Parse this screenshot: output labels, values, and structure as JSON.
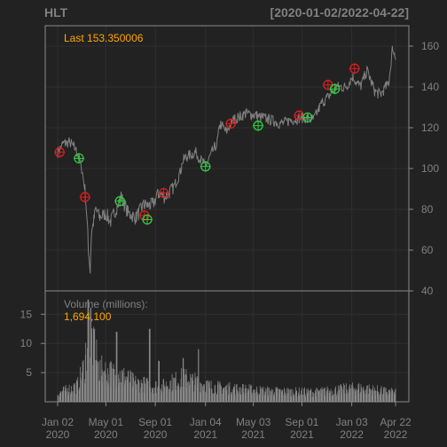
{
  "colors": {
    "background": "#222222",
    "panel_border": "#8a8a8a",
    "grid": "#2f2f2f",
    "price_line": "#808080",
    "volume_bars": "#888888",
    "text": "#808080",
    "last_label": "#ffa500",
    "buy_signal": "#2ecc40",
    "sell_signal": "#d62020"
  },
  "chart_data": {
    "type": "line",
    "title": "HLT",
    "date_range": "[2020-01-02/2022-04-22]",
    "last_label": "Last 153.350006",
    "price_panel": {
      "ylim": [
        40,
        170
      ],
      "yticks": [
        "40",
        "60",
        "80",
        "100",
        "120",
        "140",
        "160"
      ],
      "grid": true,
      "series": [
        {
          "x": [
            "2020-01-02",
            "2020-01-15",
            "2020-02-01",
            "2020-02-14",
            "2020-02-21",
            "2020-03-02",
            "2020-03-10",
            "2020-03-16",
            "2020-03-18",
            "2020-03-23",
            "2020-03-26",
            "2020-04-06",
            "2020-04-15",
            "2020-05-01",
            "2020-05-13",
            "2020-06-08",
            "2020-06-26",
            "2020-07-15",
            "2020-08-03",
            "2020-08-25",
            "2020-09-10",
            "2020-09-24",
            "2020-10-15",
            "2020-11-02",
            "2020-11-09",
            "2020-11-20",
            "2020-12-10",
            "2021-01-04",
            "2021-01-20",
            "2021-02-01",
            "2021-02-10",
            "2021-02-25",
            "2021-03-15",
            "2021-04-15",
            "2021-05-10",
            "2021-06-10",
            "2021-07-10",
            "2021-08-10",
            "2021-09-01",
            "2021-09-30",
            "2021-10-20",
            "2021-11-05",
            "2021-11-26",
            "2021-12-20",
            "2022-01-05",
            "2022-01-25",
            "2022-02-10",
            "2022-03-01",
            "2022-03-15",
            "2022-04-05",
            "2022-04-15",
            "2022-04-22"
          ],
          "y": [
            108,
            112,
            113,
            110,
            107,
            100,
            90,
            72,
            62,
            50,
            68,
            80,
            76,
            78,
            74,
            86,
            78,
            76,
            82,
            82,
            88,
            86,
            90,
            98,
            104,
            106,
            108,
            101,
            108,
            112,
            122,
            118,
            124,
            127,
            126,
            124,
            122,
            124,
            125,
            124,
            132,
            135,
            140,
            140,
            145,
            140,
            148,
            138,
            136,
            142,
            160,
            153.35
          ]
        }
      ]
    },
    "volume_panel": {
      "label": "Volume (millions):",
      "last_value": "1,694,100",
      "ylim": [
        0,
        19
      ],
      "yticks": [
        "5",
        "10",
        "15"
      ],
      "keypoints": [
        {
          "x": "2020-01-02",
          "y": 1.6
        },
        {
          "x": "2020-02-20",
          "y": 3.0
        },
        {
          "x": "2020-03-10",
          "y": 7.0
        },
        {
          "x": "2020-03-18",
          "y": 15.0
        },
        {
          "x": "2020-03-25",
          "y": 12.0
        },
        {
          "x": "2020-04-15",
          "y": 6.0
        },
        {
          "x": "2020-06-08",
          "y": 5.0
        },
        {
          "x": "2020-07-15",
          "y": 3.5
        },
        {
          "x": "2020-09-15",
          "y": 2.8
        },
        {
          "x": "2020-11-09",
          "y": 4.5
        },
        {
          "x": "2021-01-20",
          "y": 2.8
        },
        {
          "x": "2021-06-10",
          "y": 2.0
        },
        {
          "x": "2021-10-01",
          "y": 1.8
        },
        {
          "x": "2022-01-20",
          "y": 2.6
        },
        {
          "x": "2022-04-22",
          "y": 1.7
        }
      ],
      "spikes": [
        {
          "x": "2020-03-18",
          "y": 17.5
        },
        {
          "x": "2020-04-02",
          "y": 12.5
        },
        {
          "x": "2020-05-28",
          "y": 12.0
        },
        {
          "x": "2020-08-18",
          "y": 12.5
        },
        {
          "x": "2020-09-10",
          "y": 7.0
        },
        {
          "x": "2020-11-09",
          "y": 7.5
        },
        {
          "x": "2020-12-18",
          "y": 9.0
        }
      ]
    },
    "x_axis": {
      "ticks": [
        {
          "x": "2020-01-02",
          "label": [
            "Jan 02",
            "2020"
          ]
        },
        {
          "x": "2020-05-01",
          "label": [
            "May 01",
            "2020"
          ]
        },
        {
          "x": "2020-09-01",
          "label": [
            "Sep 01",
            "2020"
          ]
        },
        {
          "x": "2021-01-04",
          "label": [
            "Jan 04",
            "2021"
          ]
        },
        {
          "x": "2021-05-03",
          "label": [
            "May 03",
            "2021"
          ]
        },
        {
          "x": "2021-09-01",
          "label": [
            "Sep 01",
            "2021"
          ]
        },
        {
          "x": "2022-01-03",
          "label": [
            "Jan 03",
            "2022"
          ]
        },
        {
          "x": "2022-04-22",
          "label": [
            "Apr 22",
            "2022"
          ]
        }
      ]
    },
    "signals": {
      "buy": [
        {
          "x": "2020-02-24",
          "y": 105
        },
        {
          "x": "2020-06-05",
          "y": 84
        },
        {
          "x": "2020-08-12",
          "y": 75
        },
        {
          "x": "2021-01-04",
          "y": 101
        },
        {
          "x": "2021-05-15",
          "y": 121
        },
        {
          "x": "2021-09-15",
          "y": 125
        },
        {
          "x": "2021-11-22",
          "y": 139
        }
      ],
      "sell": [
        {
          "x": "2020-01-07",
          "y": 108
        },
        {
          "x": "2020-03-10",
          "y": 86
        },
        {
          "x": "2020-08-05",
          "y": 77
        },
        {
          "x": "2020-09-22",
          "y": 88
        },
        {
          "x": "2021-03-08",
          "y": 122
        },
        {
          "x": "2021-08-25",
          "y": 126
        },
        {
          "x": "2021-11-05",
          "y": 141
        },
        {
          "x": "2022-01-10",
          "y": 149
        }
      ]
    }
  }
}
